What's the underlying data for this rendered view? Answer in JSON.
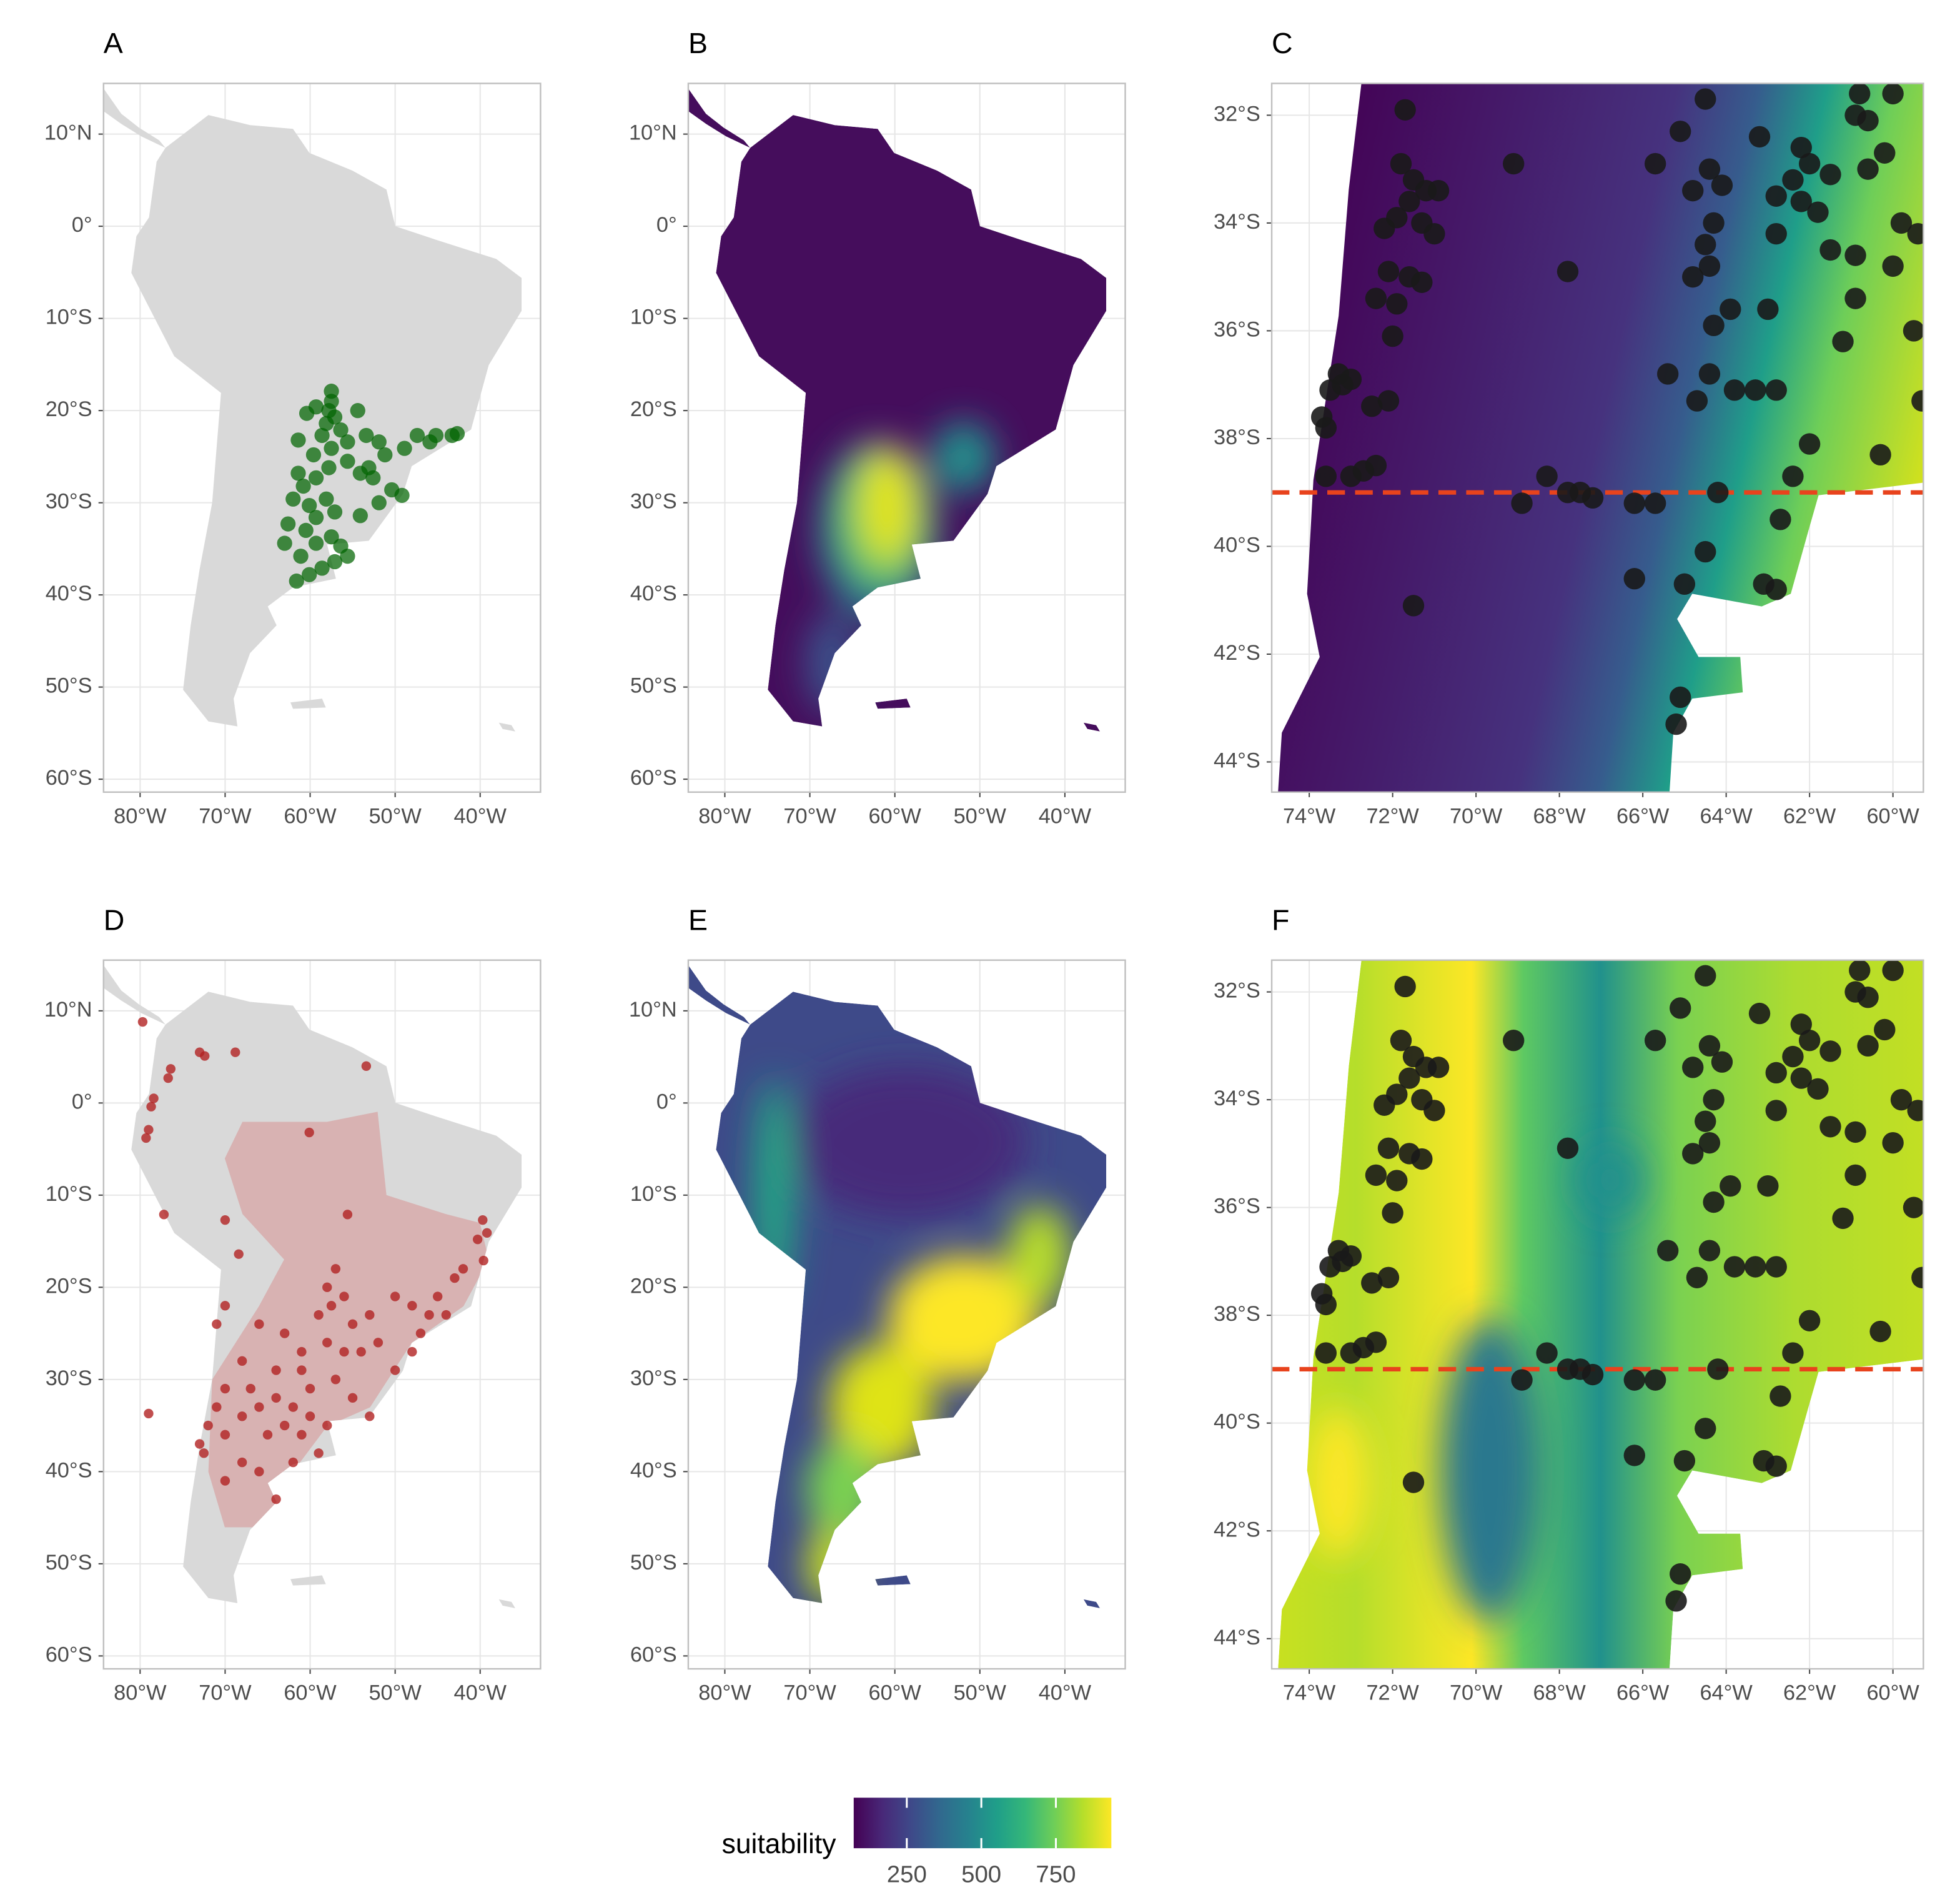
{
  "chart_data": [
    {
      "type": "map",
      "label": "A",
      "xlim": [
        -84.3,
        -32.9
      ],
      "ylim": [
        -61.4,
        15.5
      ],
      "xticks": [
        {
          "value": -80,
          "label": "80°W"
        },
        {
          "value": -70,
          "label": "70°W"
        },
        {
          "value": -60,
          "label": "60°W"
        },
        {
          "value": -50,
          "label": "50°W"
        },
        {
          "value": -40,
          "label": "40°W"
        }
      ],
      "yticks": [
        {
          "value": 10,
          "label": "10°N"
        },
        {
          "value": 0,
          "label": "0°"
        },
        {
          "value": -10,
          "label": "10°S"
        },
        {
          "value": -20,
          "label": "20°S"
        },
        {
          "value": -30,
          "label": "30°S"
        },
        {
          "value": -40,
          "label": "40°S"
        },
        {
          "value": -50,
          "label": "50°S"
        },
        {
          "value": -60,
          "label": "60°S"
        }
      ],
      "points": {
        "color": "#006400",
        "lon": [
          -57.5,
          -57.5,
          -57.8,
          -58.1,
          -57.1,
          -60.4,
          -58.6,
          -56.4,
          -54.4,
          -57.5,
          -55.6,
          -59.6,
          -53.4,
          -51.9,
          -53.1,
          -54.1,
          -52.6,
          -51.2,
          -48.9,
          -47.4,
          -45.9,
          -45.2,
          -43.3,
          -42.7,
          -55.6,
          -57.8,
          -59.3,
          -60.8,
          -61.4,
          -62.0,
          -60.1,
          -58.1,
          -57.1,
          -59.3,
          -60.5,
          -62.6,
          -63.0,
          -61.1,
          -59.3,
          -57.5,
          -56.4,
          -58.6,
          -61.6,
          -60.1,
          -57.1,
          -55.6,
          -54.1,
          -51.9,
          -50.4,
          -49.2,
          -61.4,
          -59.3
        ],
        "lat": [
          -17.9,
          -19.0,
          -20.0,
          -21.4,
          -20.7,
          -20.3,
          -22.7,
          -22.1,
          -20.0,
          -24.1,
          -23.4,
          -24.8,
          -22.7,
          -23.4,
          -26.2,
          -26.8,
          -27.3,
          -24.8,
          -24.1,
          -22.7,
          -23.4,
          -22.7,
          -22.7,
          -22.5,
          -25.5,
          -26.2,
          -27.3,
          -28.2,
          -26.8,
          -29.6,
          -30.3,
          -29.6,
          -31.0,
          -31.6,
          -33.0,
          -32.3,
          -34.4,
          -35.8,
          -34.4,
          -33.7,
          -34.7,
          -37.1,
          -38.5,
          -37.8,
          -36.4,
          -35.8,
          -31.4,
          -30.0,
          -28.6,
          -29.2,
          -23.2,
          -19.6
        ]
      }
    },
    {
      "type": "map",
      "label": "B",
      "xlim": [
        -84.3,
        -32.9
      ],
      "ylim": [
        -61.4,
        15.5
      ],
      "xticks": [
        {
          "value": -80,
          "label": "80°W"
        },
        {
          "value": -70,
          "label": "70°W"
        },
        {
          "value": -60,
          "label": "60°W"
        },
        {
          "value": -50,
          "label": "50°W"
        },
        {
          "value": -40,
          "label": "40°W"
        }
      ],
      "yticks": [
        {
          "value": 10,
          "label": "10°N"
        },
        {
          "value": 0,
          "label": "0°"
        },
        {
          "value": -10,
          "label": "10°S"
        },
        {
          "value": -20,
          "label": "20°S"
        },
        {
          "value": -30,
          "label": "30°S"
        },
        {
          "value": -40,
          "label": "40°S"
        },
        {
          "value": -50,
          "label": "50°S"
        },
        {
          "value": -60,
          "label": "60°S"
        }
      ]
    },
    {
      "type": "zoom_map",
      "label": "C",
      "xlim": [
        -74.9,
        -59.27
      ],
      "ylim": [
        -44.56,
        -31.41
      ],
      "xticks": [
        {
          "value": -74,
          "label": "74°W"
        },
        {
          "value": -72,
          "label": "72°W"
        },
        {
          "value": -70,
          "label": "70°W"
        },
        {
          "value": -68,
          "label": "68°W"
        },
        {
          "value": -66,
          "label": "66°W"
        },
        {
          "value": -64,
          "label": "64°W"
        },
        {
          "value": -62,
          "label": "62°W"
        },
        {
          "value": -60,
          "label": "60°W"
        }
      ],
      "yticks": [
        {
          "value": -32,
          "label": "32°S"
        },
        {
          "value": -34,
          "label": "34°S"
        },
        {
          "value": -36,
          "label": "36°S"
        },
        {
          "value": -38,
          "label": "38°S"
        },
        {
          "value": -40,
          "label": "40°S"
        },
        {
          "value": -42,
          "label": "42°S"
        },
        {
          "value": -44,
          "label": "44°S"
        }
      ],
      "threshold_lat": -39,
      "threshold_color": "#e8431d"
    },
    {
      "type": "map",
      "label": "D",
      "xlim": [
        -84.3,
        -32.9
      ],
      "ylim": [
        -61.4,
        15.5
      ],
      "xticks": [
        {
          "value": -80,
          "label": "80°W"
        },
        {
          "value": -70,
          "label": "70°W"
        },
        {
          "value": -60,
          "label": "60°W"
        },
        {
          "value": -50,
          "label": "50°W"
        },
        {
          "value": -40,
          "label": "40°W"
        }
      ],
      "yticks": [
        {
          "value": 10,
          "label": "10°N"
        },
        {
          "value": 0,
          "label": "0°"
        },
        {
          "value": -10,
          "label": "10°S"
        },
        {
          "value": -20,
          "label": "20°S"
        },
        {
          "value": -30,
          "label": "30°S"
        },
        {
          "value": -40,
          "label": "40°S"
        },
        {
          "value": -50,
          "label": "50°S"
        },
        {
          "value": -60,
          "label": "60°S"
        }
      ],
      "points": {
        "color": "#b22222",
        "lon": [
          -79.7,
          -73.0,
          -72.4,
          -68.8,
          -53.4,
          -76.4,
          -76.7,
          -78.4,
          -78.7,
          -79.0,
          -79.3,
          -77.2,
          -60.1,
          -70.0,
          -55.6,
          -39.7,
          -40.3,
          -39.2,
          -39.6,
          -68.4,
          -79.0,
          -57,
          -58,
          -57.5,
          -59,
          -56,
          -55,
          -53,
          -50,
          -48,
          -46,
          -45,
          -44,
          -43,
          -42,
          -47,
          -52,
          -54,
          -56,
          -58,
          -61,
          -63,
          -66,
          -70,
          -71,
          -68,
          -70,
          -71,
          -72,
          -73,
          -72.5,
          -70,
          -68,
          -66,
          -64,
          -62,
          -60,
          -63,
          -65,
          -61,
          -58,
          -59,
          -62,
          -66,
          -68,
          -70,
          -64,
          -60,
          -57,
          -55,
          -53,
          -50,
          -48,
          -61,
          -64,
          -67
        ],
        "lat": [
          8.8,
          5.5,
          5.1,
          5.5,
          4.0,
          3.7,
          2.7,
          0.5,
          -0.4,
          -2.9,
          -3.8,
          -12.1,
          -3.2,
          -12.7,
          -12.1,
          -12.7,
          -14.8,
          -14.1,
          -17.1,
          -16.4,
          -33.7,
          -18,
          -20,
          -22,
          -23,
          -21,
          -24,
          -23,
          -21,
          -22,
          -23,
          -21,
          -23,
          -19,
          -18,
          -25,
          -26,
          -27,
          -27,
          -26,
          -27,
          -25,
          -24,
          -22,
          -24,
          -28,
          -31,
          -33,
          -35,
          -37,
          -38,
          -36,
          -34,
          -33,
          -32,
          -33,
          -34,
          -35,
          -36,
          -36,
          -35,
          -38,
          -39,
          -40,
          -39,
          -41,
          -43,
          -31,
          -30,
          -32,
          -34,
          -29,
          -27,
          -29,
          -29,
          -31
        ]
      }
    },
    {
      "type": "map",
      "label": "E",
      "xlim": [
        -84.3,
        -32.9
      ],
      "ylim": [
        -61.4,
        15.5
      ],
      "xticks": [
        {
          "value": -80,
          "label": "80°W"
        },
        {
          "value": -70,
          "label": "70°W"
        },
        {
          "value": -60,
          "label": "60°W"
        },
        {
          "value": -50,
          "label": "50°W"
        },
        {
          "value": -40,
          "label": "40°W"
        }
      ],
      "yticks": [
        {
          "value": 10,
          "label": "10°N"
        },
        {
          "value": 0,
          "label": "0°"
        },
        {
          "value": -10,
          "label": "10°S"
        },
        {
          "value": -20,
          "label": "20°S"
        },
        {
          "value": -30,
          "label": "30°S"
        },
        {
          "value": -40,
          "label": "40°S"
        },
        {
          "value": -50,
          "label": "50°S"
        },
        {
          "value": -60,
          "label": "60°S"
        }
      ]
    },
    {
      "type": "zoom_map",
      "label": "F",
      "xlim": [
        -74.9,
        -59.27
      ],
      "ylim": [
        -44.56,
        -31.41
      ],
      "xticks": [
        {
          "value": -74,
          "label": "74°W"
        },
        {
          "value": -72,
          "label": "72°W"
        },
        {
          "value": -70,
          "label": "70°W"
        },
        {
          "value": -68,
          "label": "68°W"
        },
        {
          "value": -66,
          "label": "66°W"
        },
        {
          "value": -64,
          "label": "64°W"
        },
        {
          "value": -62,
          "label": "62°W"
        },
        {
          "value": -60,
          "label": "60°W"
        }
      ],
      "yticks": [
        {
          "value": -32,
          "label": "32°S"
        },
        {
          "value": -34,
          "label": "34°S"
        },
        {
          "value": -36,
          "label": "36°S"
        },
        {
          "value": -38,
          "label": "38°S"
        },
        {
          "value": -40,
          "label": "40°S"
        },
        {
          "value": -42,
          "label": "42°S"
        },
        {
          "value": -44,
          "label": "44°S"
        }
      ],
      "threshold_lat": -39,
      "threshold_color": "#e8431d"
    }
  ],
  "zoom_points": {
    "color": "#1a1a1a",
    "lon": [
      -71.7,
      -71.8,
      -71.5,
      -71.2,
      -71.6,
      -71.9,
      -70.9,
      -72.2,
      -71.3,
      -71.0,
      -72.1,
      -71.6,
      -71.3,
      -72.4,
      -71.9,
      -72.0,
      -73.3,
      -73.5,
      -73.2,
      -73.0,
      -73.7,
      -73.6,
      -72.5,
      -72.1,
      -73.6,
      -73.0,
      -72.7,
      -72.4,
      -71.5,
      -69.1,
      -67.8,
      -68.9,
      -68.3,
      -67.8,
      -67.5,
      -67.2,
      -66.2,
      -65.7,
      -66.2,
      -65.0,
      -65.1,
      -65.2,
      -64.5,
      -65.1,
      -65.7,
      -64.4,
      -64.8,
      -64.1,
      -64.3,
      -64.5,
      -64.4,
      -64.8,
      -63.9,
      -64.3,
      -65.4,
      -64.4,
      -64.7,
      -63.8,
      -63.3,
      -62.8,
      -63.2,
      -63.0,
      -64.2,
      -64.5,
      -62.7,
      -63.1,
      -62.8,
      -60.8,
      -60.0,
      -60.9,
      -60.6,
      -62.2,
      -62.0,
      -62.4,
      -61.5,
      -60.6,
      -60.2,
      -62.8,
      -62.2,
      -61.8,
      -62.8,
      -61.5,
      -60.9,
      -60.0,
      -60.9,
      -59.8,
      -59.4,
      -61.2,
      -59.5,
      -62.0,
      -60.3,
      -62.4,
      -59.3
    ],
    "lat": [
      -31.9,
      -32.9,
      -33.2,
      -33.4,
      -33.6,
      -33.9,
      -33.4,
      -34.1,
      -34.0,
      -34.2,
      -34.9,
      -35.0,
      -35.1,
      -35.4,
      -35.5,
      -36.1,
      -36.8,
      -37.1,
      -37.0,
      -36.9,
      -37.6,
      -37.8,
      -37.4,
      -37.3,
      -38.7,
      -38.7,
      -38.6,
      -38.5,
      -41.1,
      -32.9,
      -34.9,
      -39.2,
      -38.7,
      -39.0,
      -39.0,
      -39.1,
      -39.2,
      -39.2,
      -40.6,
      -40.7,
      -42.8,
      -43.3,
      -31.7,
      -32.3,
      -32.9,
      -33.0,
      -33.4,
      -33.3,
      -34.0,
      -34.4,
      -34.8,
      -35.0,
      -35.6,
      -35.9,
      -36.8,
      -36.8,
      -37.3,
      -37.1,
      -37.1,
      -37.1,
      -32.4,
      -35.6,
      -39.0,
      -40.1,
      -39.5,
      -40.7,
      -40.8,
      -31.6,
      -31.6,
      -32.0,
      -32.1,
      -32.6,
      -32.9,
      -33.2,
      -33.1,
      -33.0,
      -32.7,
      -33.5,
      -33.6,
      -33.8,
      -34.2,
      -34.5,
      -34.6,
      -34.8,
      -35.4,
      -34.0,
      -34.2,
      -36.2,
      -36.0,
      -38.1,
      -38.3,
      -38.7,
      -37.3
    ]
  },
  "legend": {
    "title": "suitability",
    "colormap": "viridis",
    "lim": [
      72,
      936
    ],
    "ticks": [
      250,
      500,
      750
    ]
  }
}
